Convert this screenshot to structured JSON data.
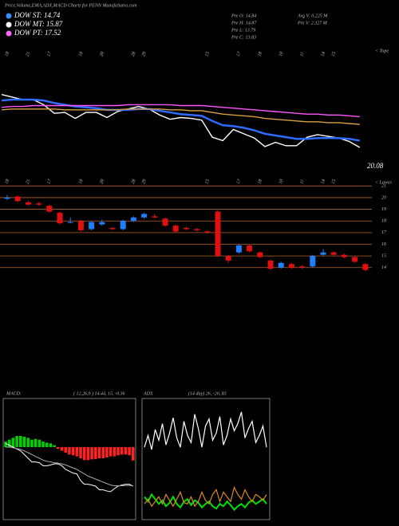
{
  "header": {
    "title": "Price,Volume,EMA,ADX,MACD Charts for PENN  MunafaSutra.com",
    "legend": [
      {
        "label": "DOW ST: 14.74",
        "color": "#3a8dff"
      },
      {
        "label": "DOW MT: 15.87",
        "color": "#ffffff"
      },
      {
        "label": "DOW PT: 17.52",
        "color": "#ff66ff"
      }
    ],
    "stats_left": [
      "Pre  O: 14.84",
      "Pre  H: 14.87",
      "Pre  L: 13.79",
      "Pre  C: 13.83"
    ],
    "stats_right": [
      "Avg V: 0.225 M",
      "Pre  V: 2.327 M"
    ],
    "top_note": "< Tope",
    "mid_note": "< Lowes",
    "price_label": "20.08"
  },
  "chart_data": [
    {
      "type": "line",
      "ylim": [
        11,
        25
      ],
      "series": [
        {
          "color": "#ffffff",
          "values": [
            20.0,
            19.7,
            19.4,
            19.4,
            18.8,
            17.8,
            17.9,
            17.2,
            17.9,
            17.9,
            17.3,
            18.0,
            18.3,
            18.6,
            18.3,
            17.6,
            17.1,
            17.3,
            17.2,
            17.0,
            15.0,
            14.6,
            15.9,
            15.4,
            14.9,
            13.9,
            14.4,
            14.0,
            14.0,
            15.0,
            15.3,
            15.1,
            14.9,
            14.5,
            13.8
          ]
        },
        {
          "color": "#2f6bff",
          "values": [
            19.3,
            19.4,
            19.4,
            19.4,
            19.3,
            19.0,
            18.8,
            18.6,
            18.5,
            18.4,
            18.2,
            18.2,
            18.2,
            18.3,
            18.3,
            18.1,
            17.9,
            17.7,
            17.6,
            17.5,
            16.9,
            16.4,
            16.3,
            16.1,
            15.8,
            15.4,
            15.2,
            15.0,
            14.8,
            14.8,
            14.9,
            14.9,
            14.9,
            14.8,
            14.6
          ]
        },
        {
          "color": "#ff55ff",
          "values": [
            18.5,
            18.6,
            18.6,
            18.7,
            18.7,
            18.7,
            18.7,
            18.7,
            18.7,
            18.7,
            18.7,
            18.7,
            18.8,
            18.8,
            18.8,
            18.8,
            18.8,
            18.7,
            18.7,
            18.7,
            18.6,
            18.5,
            18.4,
            18.3,
            18.2,
            18.1,
            18.0,
            17.9,
            17.8,
            17.7,
            17.7,
            17.6,
            17.6,
            17.5,
            17.4
          ]
        },
        {
          "color": "#d9a040",
          "values": [
            18.2,
            18.3,
            18.3,
            18.3,
            18.3,
            18.3,
            18.2,
            18.2,
            18.2,
            18.2,
            18.2,
            18.2,
            18.3,
            18.3,
            18.3,
            18.3,
            18.2,
            18.2,
            18.1,
            18.1,
            17.9,
            17.7,
            17.6,
            17.5,
            17.4,
            17.2,
            17.1,
            17.0,
            16.9,
            16.8,
            16.8,
            16.7,
            16.7,
            16.6,
            16.5
          ]
        }
      ]
    },
    {
      "type": "candlestick",
      "ylim": [
        13.3,
        21.5
      ],
      "yticks": [
        21,
        20,
        19,
        18,
        17,
        16,
        15,
        14
      ],
      "up_color": "#1e7fff",
      "down_color": "#e01010",
      "grid_color": "#b8652a",
      "categories": [
        "18",
        null,
        "21",
        null,
        "17",
        null,
        null,
        "18",
        null,
        "20",
        null,
        null,
        "28",
        "29",
        null,
        null,
        null,
        null,
        null,
        "15",
        null,
        null,
        "17",
        null,
        "18",
        null,
        "10",
        null,
        "11",
        null,
        "14",
        "15",
        null,
        null,
        null
      ],
      "open": [
        19.9,
        20.1,
        19.6,
        19.5,
        19.3,
        18.7,
        17.9,
        18.0,
        17.3,
        17.7,
        17.4,
        17.3,
        18.0,
        18.3,
        18.4,
        18.2,
        17.6,
        17.4,
        17.3,
        17.1,
        18.8,
        15.0,
        15.3,
        15.9,
        15.3,
        14.6,
        14.0,
        14.3,
        14.1,
        14.1,
        15.1,
        15.3,
        15.1,
        14.9,
        14.3
      ],
      "high": [
        20.2,
        20.2,
        19.7,
        19.6,
        19.4,
        18.8,
        18.3,
        18.1,
        18.0,
        18.1,
        17.5,
        18.1,
        18.4,
        18.7,
        18.6,
        18.3,
        17.7,
        17.5,
        17.4,
        17.2,
        18.9,
        15.1,
        16.0,
        16.0,
        15.4,
        14.7,
        14.5,
        14.4,
        14.2,
        15.1,
        15.6,
        15.4,
        15.2,
        15.0,
        14.4
      ],
      "low": [
        19.8,
        19.6,
        19.3,
        19.3,
        18.7,
        17.7,
        17.8,
        17.1,
        17.2,
        17.6,
        17.2,
        17.2,
        17.9,
        18.2,
        18.2,
        17.5,
        17.0,
        17.2,
        17.1,
        16.9,
        14.9,
        14.4,
        15.2,
        15.3,
        14.8,
        13.8,
        13.9,
        13.9,
        13.9,
        14.0,
        15.0,
        15.0,
        14.8,
        14.4,
        13.7
      ],
      "close": [
        20.0,
        19.7,
        19.4,
        19.4,
        18.8,
        17.8,
        17.9,
        17.2,
        17.9,
        17.9,
        17.3,
        18.0,
        18.3,
        18.6,
        18.3,
        17.6,
        17.1,
        17.3,
        17.2,
        17.0,
        15.0,
        14.6,
        15.9,
        15.4,
        14.9,
        13.9,
        14.4,
        14.0,
        14.0,
        15.0,
        15.3,
        15.1,
        14.9,
        14.5,
        13.8
      ]
    },
    {
      "type": "macd",
      "title": "MACD:",
      "params": "( 12,26,9 ) 14.44,  15,  -0.36",
      "ylim": [
        -1.8,
        1.2
      ],
      "histogram": [
        0.15,
        0.2,
        0.25,
        0.3,
        0.3,
        0.28,
        0.25,
        0.2,
        0.22,
        0.2,
        0.15,
        0.12,
        0.1,
        0.05,
        -0.05,
        -0.1,
        -0.15,
        -0.2,
        -0.22,
        -0.25,
        -0.3,
        -0.35,
        -0.35,
        -0.33,
        -0.32,
        -0.3,
        -0.3,
        -0.28,
        -0.25,
        -0.25,
        -0.22,
        -0.2,
        -0.2,
        -0.22,
        -0.36
      ],
      "series": [
        {
          "color": "#ffffff",
          "values": [
            0.1,
            0.05,
            0,
            -0.05,
            -0.1,
            -0.2,
            -0.3,
            -0.4,
            -0.4,
            -0.42,
            -0.5,
            -0.5,
            -0.48,
            -0.45,
            -0.45,
            -0.5,
            -0.6,
            -0.65,
            -0.7,
            -0.72,
            -0.9,
            -1.0,
            -1.0,
            -1.02,
            -1.05,
            -1.15,
            -1.15,
            -1.18,
            -1.2,
            -1.12,
            -1.05,
            -1.02,
            -1.0,
            -1.0,
            -1.05
          ]
        },
        {
          "color": "#aaaaaa",
          "values": [
            0.0,
            0.0,
            -0.02,
            -0.04,
            -0.06,
            -0.1,
            -0.15,
            -0.2,
            -0.25,
            -0.3,
            -0.35,
            -0.38,
            -0.4,
            -0.42,
            -0.43,
            -0.45,
            -0.48,
            -0.52,
            -0.56,
            -0.6,
            -0.66,
            -0.72,
            -0.78,
            -0.82,
            -0.86,
            -0.9,
            -0.94,
            -0.98,
            -1.02,
            -1.04,
            -1.04,
            -1.04,
            -1.03,
            -1.03,
            -1.04
          ]
        }
      ]
    },
    {
      "type": "adx",
      "title": "ADX",
      "params": "(14 day) 26,  -20,  83",
      "ylim": [
        0,
        100
      ],
      "series": [
        {
          "color": "#ffffff",
          "values": [
            60,
            70,
            58,
            75,
            66,
            80,
            62,
            72,
            85,
            68,
            60,
            82,
            70,
            64,
            88,
            76,
            60,
            78,
            84,
            66,
            72,
            86,
            62,
            70,
            84,
            74,
            80,
            90,
            68,
            76,
            82,
            64,
            70,
            78,
            60
          ]
        },
        {
          "color": "#00e000",
          "values": [
            18,
            14,
            20,
            16,
            12,
            15,
            10,
            13,
            18,
            12,
            9,
            14,
            16,
            11,
            15,
            13,
            9,
            12,
            14,
            10,
            8,
            12,
            10,
            14,
            11,
            7,
            10,
            12,
            9,
            13,
            15,
            12,
            14,
            16,
            12
          ]
        },
        {
          "color": "#d98a20",
          "values": [
            12,
            16,
            10,
            14,
            18,
            12,
            20,
            15,
            10,
            16,
            22,
            13,
            12,
            18,
            10,
            14,
            22,
            15,
            12,
            20,
            24,
            14,
            22,
            18,
            14,
            26,
            20,
            16,
            24,
            18,
            14,
            20,
            18,
            15,
            20
          ]
        }
      ]
    }
  ]
}
